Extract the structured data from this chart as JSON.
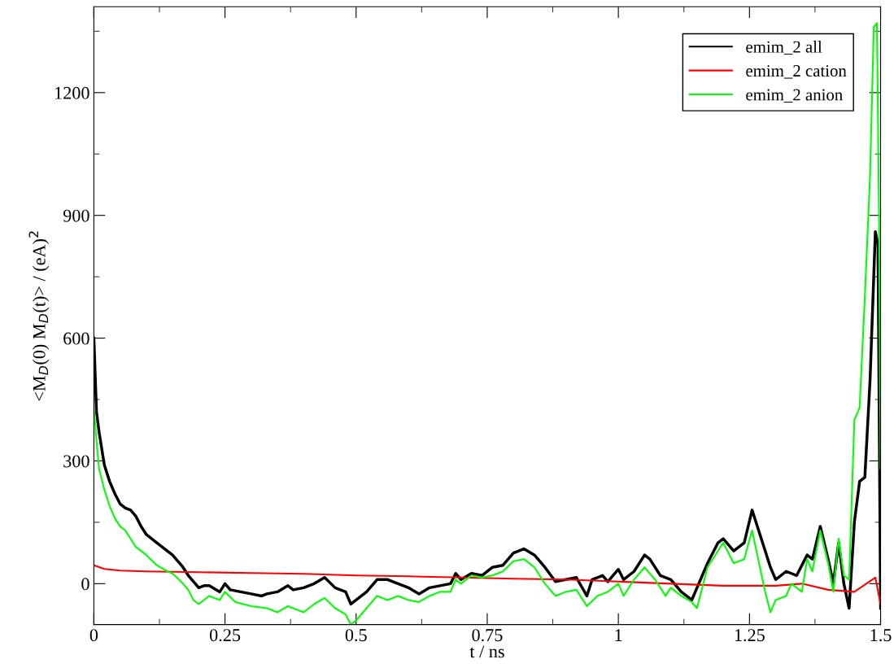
{
  "chart_data": {
    "type": "line",
    "xlabel": "t / ns",
    "ylabel": "<M$_{D}$(0) M$_{D}$(t)> / (eA)$^{2}$",
    "xlim": [
      0,
      1.5
    ],
    "xticks": [
      0,
      0.25,
      0.5,
      0.75,
      1,
      1.25,
      1.5
    ],
    "ylim": [
      -100,
      1410
    ],
    "yticks": [
      0,
      300,
      600,
      900,
      1200
    ],
    "grid": false,
    "legend": "top right",
    "marker": "none",
    "line_style": "solid",
    "series": [
      {
        "name": "emim_2 all",
        "color": "#000000",
        "x": [
          0,
          0.005,
          0.01,
          0.02,
          0.03,
          0.04,
          0.05,
          0.06,
          0.07,
          0.08,
          0.09,
          0.1,
          0.12,
          0.14,
          0.15,
          0.17,
          0.18,
          0.19,
          0.2,
          0.21,
          0.22,
          0.24,
          0.25,
          0.26,
          0.28,
          0.3,
          0.32,
          0.33,
          0.35,
          0.37,
          0.38,
          0.4,
          0.42,
          0.44,
          0.46,
          0.48,
          0.49,
          0.5,
          0.52,
          0.54,
          0.56,
          0.58,
          0.6,
          0.62,
          0.64,
          0.66,
          0.68,
          0.69,
          0.7,
          0.72,
          0.74,
          0.76,
          0.78,
          0.8,
          0.82,
          0.84,
          0.86,
          0.88,
          0.9,
          0.92,
          0.94,
          0.95,
          0.97,
          0.98,
          1.0,
          1.01,
          1.03,
          1.05,
          1.06,
          1.08,
          1.1,
          1.12,
          1.14,
          1.15,
          1.17,
          1.19,
          1.2,
          1.22,
          1.24,
          1.255,
          1.27,
          1.29,
          1.3,
          1.32,
          1.34,
          1.36,
          1.37,
          1.385,
          1.4,
          1.41,
          1.42,
          1.43,
          1.44,
          1.45,
          1.46,
          1.47,
          1.48,
          1.49,
          1.495,
          1.5
        ],
        "values": [
          600,
          420,
          370,
          290,
          250,
          220,
          195,
          185,
          180,
          165,
          140,
          120,
          100,
          80,
          70,
          40,
          20,
          5,
          -10,
          -5,
          -5,
          -20,
          0,
          -15,
          -20,
          -25,
          -30,
          -25,
          -20,
          -5,
          -15,
          -10,
          0,
          15,
          -10,
          -20,
          -50,
          -40,
          -20,
          10,
          10,
          0,
          -10,
          -25,
          -10,
          -5,
          0,
          25,
          10,
          25,
          20,
          40,
          45,
          75,
          85,
          70,
          40,
          5,
          10,
          15,
          -30,
          10,
          20,
          5,
          35,
          10,
          30,
          70,
          60,
          20,
          10,
          -20,
          -40,
          -10,
          50,
          100,
          110,
          80,
          100,
          180,
          120,
          40,
          10,
          30,
          20,
          70,
          60,
          140,
          60,
          0,
          100,
          0,
          -60,
          150,
          250,
          260,
          500,
          860,
          830,
          -60
        ]
      },
      {
        "name": "emim_2 cation",
        "color": "#ff0000",
        "x": [
          0,
          0.02,
          0.05,
          0.1,
          0.2,
          0.3,
          0.4,
          0.5,
          0.6,
          0.7,
          0.8,
          0.9,
          1.0,
          1.1,
          1.2,
          1.3,
          1.35,
          1.4,
          1.45,
          1.49,
          1.5
        ],
        "values": [
          45,
          36,
          32,
          30,
          28,
          26,
          24,
          20,
          18,
          15,
          12,
          10,
          5,
          0,
          -5,
          -5,
          0,
          -15,
          -20,
          15,
          -50
        ]
      },
      {
        "name": "emim_2 anion",
        "color": "#00ff00",
        "x": [
          0,
          0.005,
          0.01,
          0.02,
          0.03,
          0.04,
          0.05,
          0.06,
          0.07,
          0.08,
          0.1,
          0.12,
          0.14,
          0.15,
          0.17,
          0.18,
          0.19,
          0.2,
          0.22,
          0.24,
          0.25,
          0.27,
          0.3,
          0.33,
          0.35,
          0.37,
          0.38,
          0.4,
          0.42,
          0.44,
          0.46,
          0.48,
          0.49,
          0.5,
          0.52,
          0.54,
          0.56,
          0.58,
          0.6,
          0.62,
          0.64,
          0.66,
          0.68,
          0.69,
          0.7,
          0.72,
          0.74,
          0.76,
          0.78,
          0.8,
          0.82,
          0.84,
          0.86,
          0.88,
          0.9,
          0.92,
          0.94,
          0.96,
          0.98,
          1.0,
          1.01,
          1.03,
          1.05,
          1.07,
          1.09,
          1.1,
          1.12,
          1.14,
          1.15,
          1.17,
          1.2,
          1.22,
          1.24,
          1.255,
          1.27,
          1.28,
          1.29,
          1.3,
          1.32,
          1.33,
          1.35,
          1.36,
          1.37,
          1.385,
          1.4,
          1.41,
          1.42,
          1.43,
          1.44,
          1.45,
          1.46,
          1.47,
          1.48,
          1.487,
          1.493,
          1.497,
          1.5
        ],
        "values": [
          430,
          350,
          280,
          230,
          190,
          160,
          140,
          130,
          110,
          90,
          70,
          45,
          30,
          25,
          0,
          -15,
          -40,
          -50,
          -30,
          -40,
          -20,
          -45,
          -55,
          -60,
          -70,
          -55,
          -60,
          -70,
          -50,
          -35,
          -60,
          -75,
          -100,
          -90,
          -60,
          -30,
          -40,
          -30,
          -40,
          -45,
          -30,
          -20,
          -20,
          10,
          0,
          20,
          15,
          20,
          30,
          55,
          60,
          40,
          0,
          -30,
          -20,
          -15,
          -55,
          -30,
          -20,
          0,
          -30,
          10,
          40,
          10,
          -30,
          -10,
          -30,
          -45,
          -60,
          40,
          100,
          50,
          60,
          130,
          40,
          -20,
          -70,
          -40,
          -30,
          0,
          -20,
          60,
          30,
          130,
          50,
          -20,
          110,
          20,
          10,
          400,
          430,
          700,
          1000,
          1360,
          1370,
          900,
          280
        ]
      }
    ]
  }
}
